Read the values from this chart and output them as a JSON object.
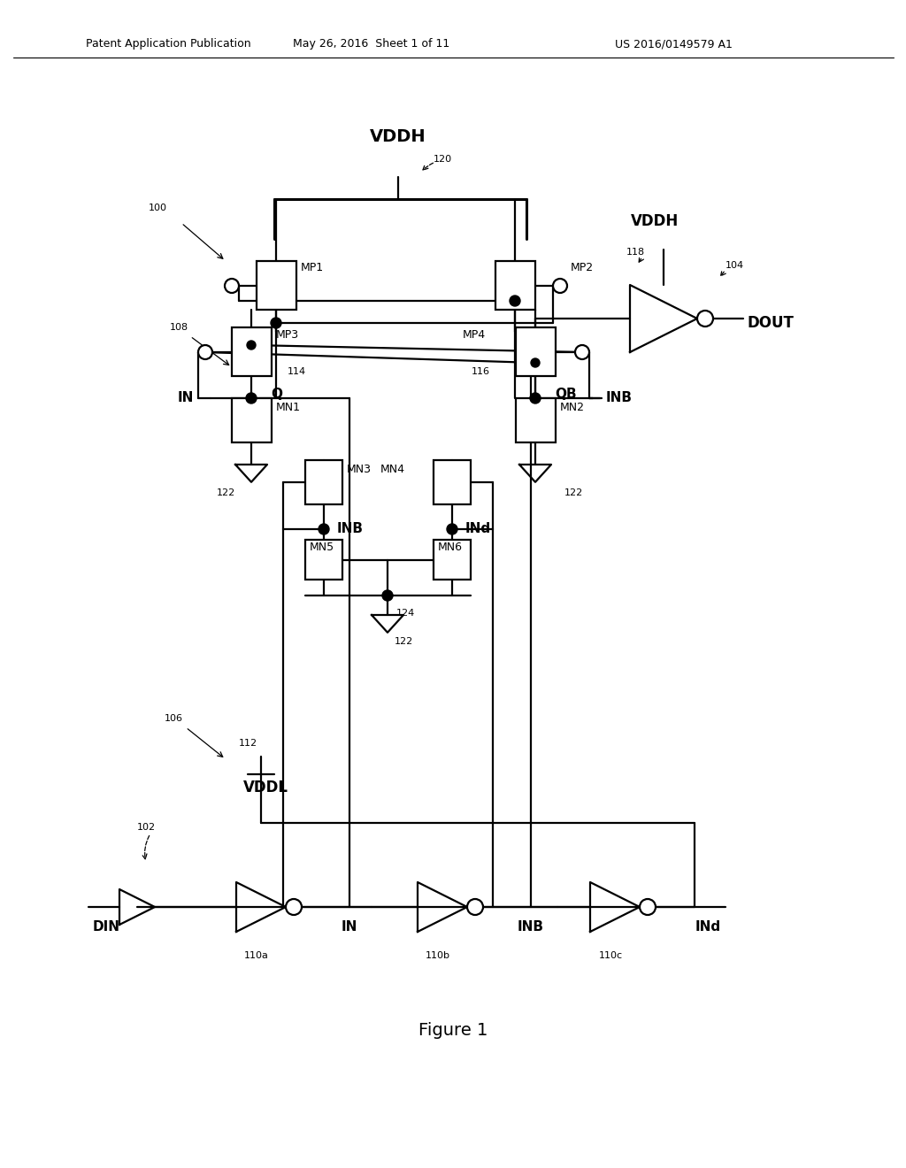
{
  "background_color": "#ffffff",
  "header_left": "Patent Application Publication",
  "header_mid": "May 26, 2016  Sheet 1 of 11",
  "header_right": "US 2016/0149579 A1",
  "fig_caption": "Figure 1",
  "fig_width": 10.24,
  "fig_height": 13.2
}
